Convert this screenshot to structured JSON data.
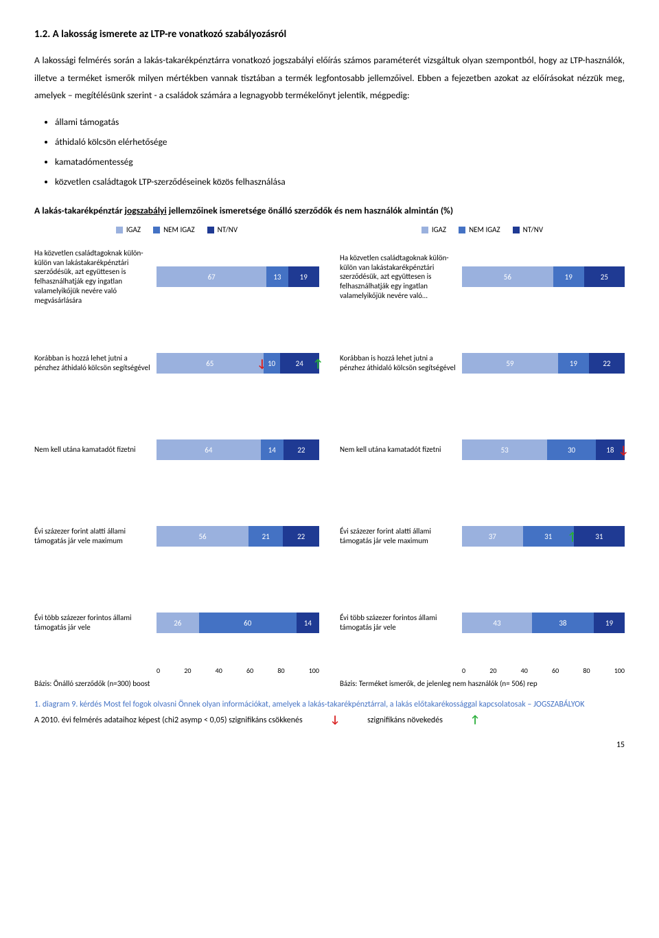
{
  "heading": "1.2. A lakosság ismerete az LTP-re vonatkozó szabályozásról",
  "paragraph": "A lakossági felmérés során a lakás-takarékpénztárra vonatkozó jogszabályi előírás számos paraméterét vizsgáltuk olyan szempontból, hogy az LTP-használók, illetve a terméket ismerők milyen mértékben vannak tisztában a termék legfontosabb jellemzőivel. Ebben a fejezetben azokat az előírásokat nézzük meg, amelyek – megítélésünk szerint - a családok számára a legnagyobb termékelőnyt jelentik, mégpedig:",
  "bullets": [
    "állami támogatás",
    "áthidaló kölcsön elérhetősége",
    "kamatadómentesség",
    "közvetlen családtagok LTP-szerződéseinek közös felhasználása"
  ],
  "chart_title": "A lakás-takarékpénztár jogszabályi jellemzőinek ismeretsége önálló szerződők és nem használók almintán (%)",
  "legend": {
    "igaz": "IGAZ",
    "nemigaz": "NEM IGAZ",
    "ntnv": "NT/NV"
  },
  "colors": {
    "igaz": "#9ab1de",
    "nemigaz": "#4472c4",
    "ntnv": "#1f3a93",
    "arrow_down": "#d81e1e",
    "arrow_up": "#27ae38",
    "caption": "#4472c4"
  },
  "axis_ticks": [
    "0",
    "20",
    "40",
    "60",
    "80",
    "100"
  ],
  "left": {
    "basis": "Bázis: Önálló szerződők (n=300) boost",
    "rows": [
      {
        "label": "Ha közvetlen családtagoknak külön-külön van lakástakarékpénztári szerződésük, azt együttesen is felhasználhatják egy ingatlan valamelyikőjük nevére való megvásárlására",
        "vals": [
          67,
          13,
          19
        ],
        "arrows": []
      },
      {
        "label": "Korábban is hozzá lehet jutni a pénzhez áthidaló kölcsön segítségével",
        "vals": [
          65,
          10,
          24
        ],
        "arrows": [
          {
            "seg": 0,
            "dir": "down"
          },
          {
            "seg": 2,
            "dir": "up"
          }
        ]
      },
      {
        "label": "Nem kell utána kamatadót fizetni",
        "vals": [
          64,
          14,
          22
        ],
        "arrows": []
      },
      {
        "label": "Évi százezer forint alatti állami támogatás jár vele maximum",
        "vals": [
          56,
          21,
          22
        ],
        "arrows": []
      },
      {
        "label": "Évi több százezer forintos állami támogatás jár vele",
        "vals": [
          26,
          60,
          14
        ],
        "arrows": []
      }
    ]
  },
  "right": {
    "basis": "Bázis: Terméket ismerők, de jelenleg nem használók (n= 506) rep",
    "rows": [
      {
        "label": "Ha közvetlen családtagoknak külön-külön van lakástakarékpénztári szerződésük, azt együttesen is felhasználhatják egy ingatlan valamelyikőjük nevére való…",
        "vals": [
          56,
          19,
          25
        ],
        "arrows": []
      },
      {
        "label": "Korábban is hozzá lehet jutni a pénzhez áthidaló kölcsön segítségével",
        "vals": [
          59,
          19,
          22
        ],
        "arrows": []
      },
      {
        "label": "Nem kell utána kamatadót fizetni",
        "vals": [
          53,
          30,
          18
        ],
        "arrows": [
          {
            "seg": 2,
            "dir": "down"
          }
        ]
      },
      {
        "label": "Évi százezer forint alatti állami támogatás jár vele maximum",
        "vals": [
          37,
          31,
          31
        ],
        "arrows": [
          {
            "seg": 1,
            "dir": "up"
          }
        ]
      },
      {
        "label": "Évi több százezer forintos állami támogatás jár vele",
        "vals": [
          43,
          38,
          19
        ],
        "arrows": []
      }
    ]
  },
  "caption": "1. diagram 9. kérdés Most fel fogok olvasni Önnek olyan információkat, amelyek a lakás-takarékpénztárral, a lakás előtakarékossággal kapcsolatosak – JOGSZABÁLYOK",
  "footnote_left": "A 2010. évi felmérés adataihoz képest (chi2 asymp  < 0,05) szignifikáns csökkenés",
  "footnote_right": "szignifikáns növekedés",
  "page_num": "15"
}
